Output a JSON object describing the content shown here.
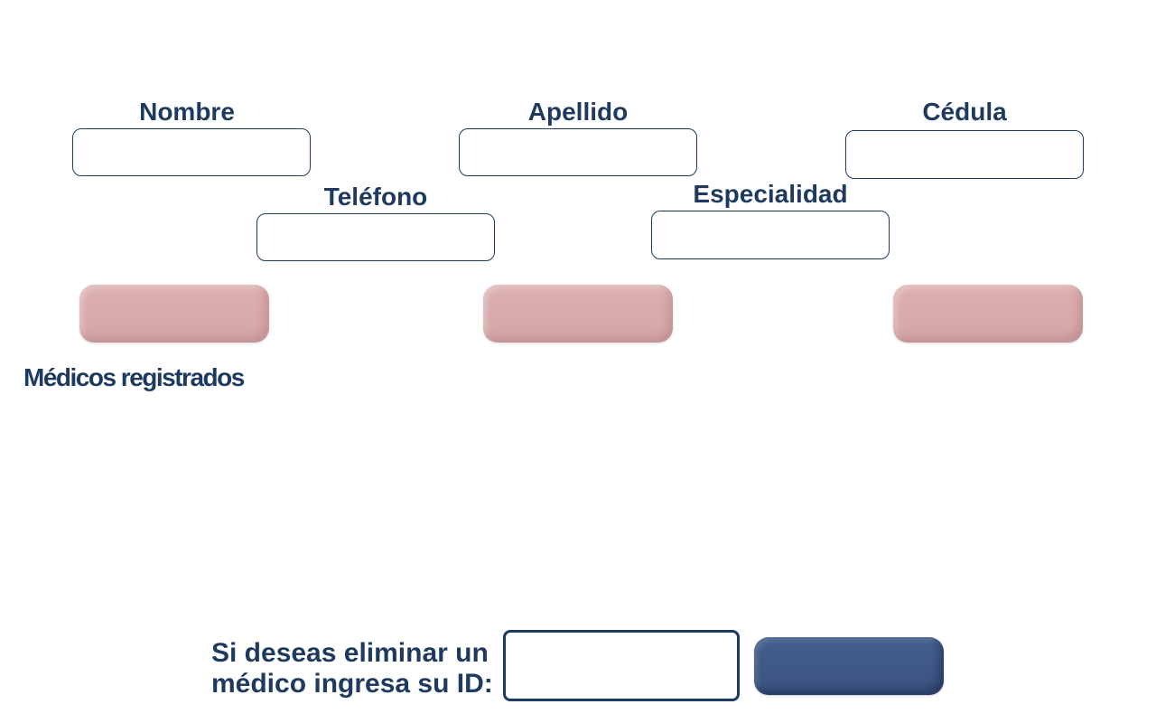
{
  "form": {
    "nombre_label": "Nombre",
    "apellido_label": "Apellido",
    "cedula_label": "Cédula",
    "telefono_label": "Teléfono",
    "especialidad_label": "Especialidad",
    "nombre_value": "",
    "apellido_value": "",
    "cedula_value": "",
    "telefono_value": "",
    "especialidad_value": ""
  },
  "actions": {
    "button_1_label": "",
    "button_2_label": "",
    "button_3_label": ""
  },
  "list": {
    "title": "Médicos registrados"
  },
  "delete": {
    "prompt": "Si deseas eliminar un médico ingresa su ID:",
    "id_value": "",
    "button_label": ""
  },
  "colors": {
    "primary_navy": "#1f3a5f",
    "button_pink": "#d4a6a6",
    "button_navy": "#3a5280"
  }
}
